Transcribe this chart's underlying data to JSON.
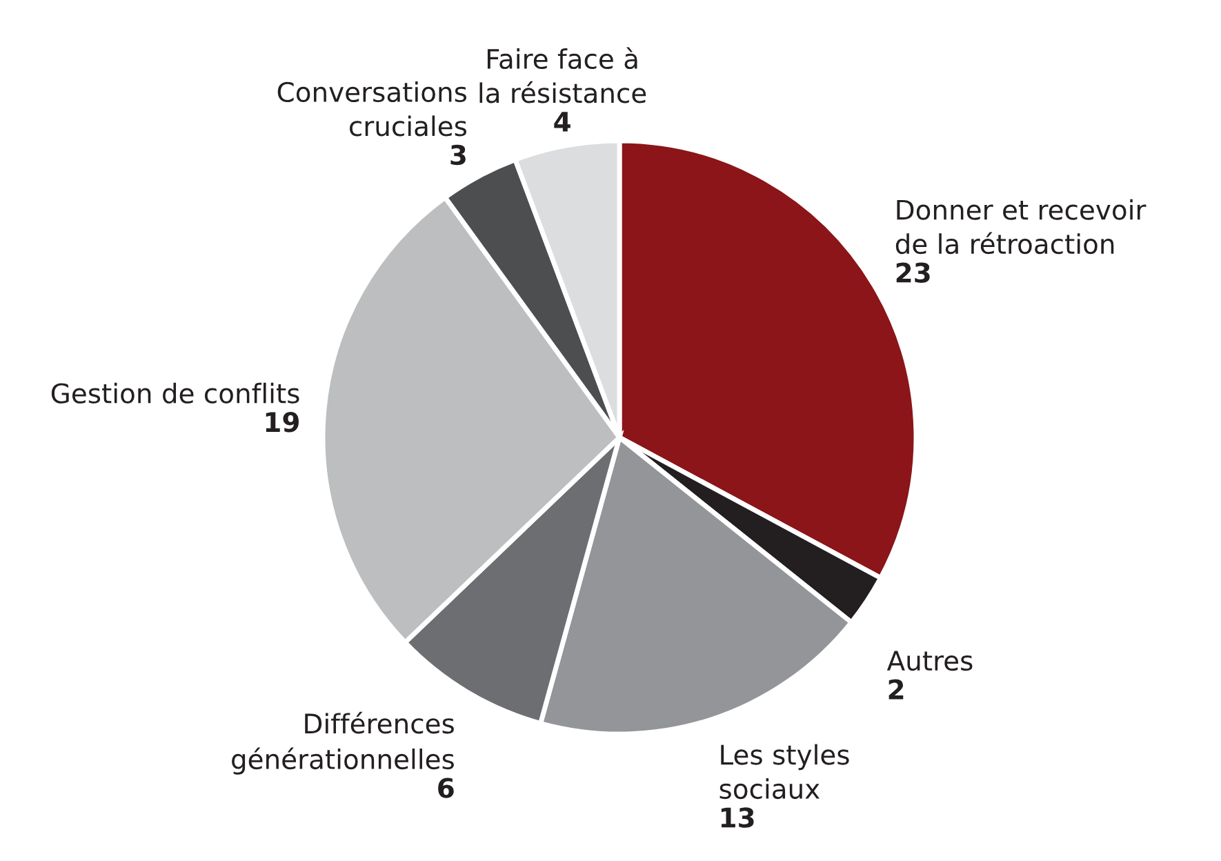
{
  "chart_data": {
    "type": "pie",
    "categories": [
      "Donner et recevoir\nde la rétroaction",
      "Autres",
      "Les styles\nsociaux",
      "Différences\ngénérationnelles",
      "Gestion de conflits",
      "Conversations\ncruciales",
      "Faire face à\nla résistance"
    ],
    "values": [
      23,
      2,
      13,
      6,
      19,
      3,
      4
    ],
    "colors": [
      "#8b1518",
      "#231f20",
      "#939598",
      "#6d6e71",
      "#bcbec0",
      "#4d4e50",
      "#dcdddf"
    ],
    "data_labels": true
  }
}
